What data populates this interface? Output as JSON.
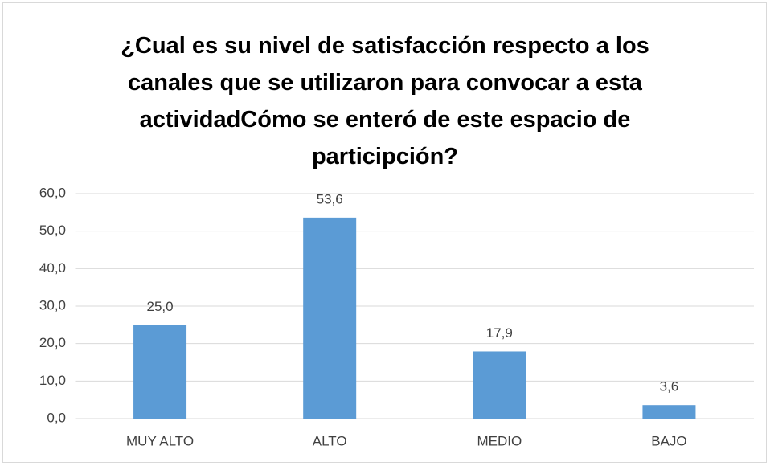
{
  "chart_data": {
    "type": "bar",
    "title": "¿Cual es su nivel de satisfacción respecto a los canales que se utilizaron para convocar a esta actividadCómo se enteró de este espacio de participción?",
    "categories": [
      "MUY ALTO",
      "ALTO",
      "MEDIO",
      "BAJO"
    ],
    "values": [
      25.0,
      53.6,
      17.9,
      3.6
    ],
    "value_labels": [
      "25,0",
      "53,6",
      "17,9",
      "3,6"
    ],
    "color": "#5b9bd5",
    "ylim": [
      0,
      60
    ],
    "yticks": [
      {
        "value": 0,
        "label": "0,0"
      },
      {
        "value": 10,
        "label": "10,0"
      },
      {
        "value": 20,
        "label": "20,0"
      },
      {
        "value": 30,
        "label": "30,0"
      },
      {
        "value": 40,
        "label": "40,0"
      },
      {
        "value": 50,
        "label": "50,0"
      },
      {
        "value": 60,
        "label": "60,0"
      }
    ],
    "grid": true
  }
}
